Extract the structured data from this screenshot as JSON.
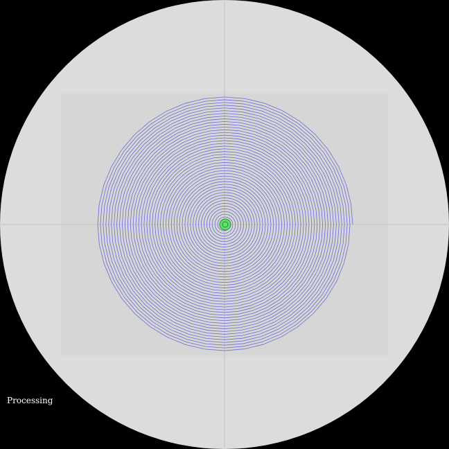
{
  "status": {
    "label": "Processing"
  },
  "colors": {
    "background": "#000000",
    "disc": "#dcdcdc",
    "inner_panel": "#d6d6d6",
    "crosshair": "#c4c4c4",
    "spiral": "#6b6bd0",
    "center_fill": "#5ee06a",
    "center_stroke": "#2f8a38"
  },
  "spiral": {
    "turns": 46
  }
}
